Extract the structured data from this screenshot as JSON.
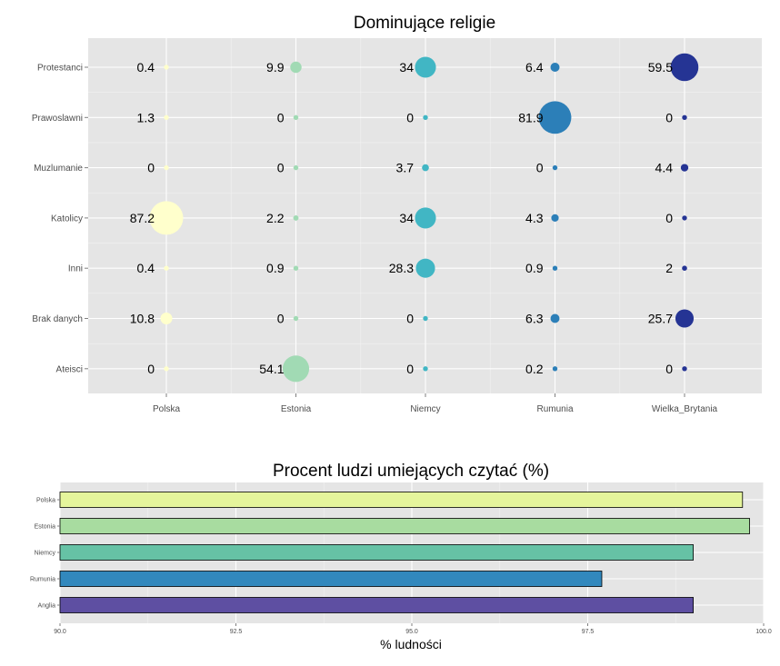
{
  "chart_data": [
    {
      "type": "scatter",
      "subtype": "bubble",
      "title": "Dominujące religie",
      "xlabel": "",
      "ylabel": "",
      "categories_x": [
        "Polska",
        "Estonia",
        "Niemcy",
        "Rumunia",
        "Wielka_Brytania"
      ],
      "categories_y": [
        "Protestanci",
        "Prawoslawni",
        "Muzlumanie",
        "Katolicy",
        "Inni",
        "Brak danych",
        "Ateisci"
      ],
      "colors": [
        "#ffffcc",
        "#a1dab4",
        "#41b6c4",
        "#2c7fb8",
        "#253494"
      ],
      "grid": true,
      "legend": "none",
      "values": {
        "Polska": [
          0.4,
          1.3,
          0,
          87.2,
          0.4,
          10.8,
          0
        ],
        "Estonia": [
          9.9,
          0,
          0,
          2.2,
          0.9,
          0,
          54.1
        ],
        "Niemcy": [
          34,
          0,
          3.7,
          34,
          28.3,
          0,
          0
        ],
        "Rumunia": [
          6.4,
          81.9,
          0,
          4.3,
          0.9,
          6.3,
          0.2
        ],
        "Wielka_Brytania": [
          59.5,
          0,
          4.4,
          0,
          2,
          25.7,
          0
        ]
      },
      "labels": {
        "Polska": [
          "0.4",
          "1.3",
          "0",
          "87.2",
          "0.4",
          "10.8",
          "0"
        ],
        "Estonia": [
          "9.9",
          "0",
          "0",
          "2.2",
          "0.9",
          "0",
          "54.1"
        ],
        "Niemcy": [
          "34",
          "0",
          "3.7",
          "34",
          "28.3",
          "0",
          "0"
        ],
        "Rumunia": [
          "6.4",
          "81.9",
          "0",
          "4.3",
          "0.9",
          "6.3",
          "0.2"
        ],
        "Wielka_Brytania": [
          "59.5",
          "0",
          "4.4",
          "0",
          "2",
          "25.7",
          "0"
        ]
      }
    },
    {
      "type": "bar",
      "orientation": "horizontal",
      "title": "Procent ludzi umiejących czytać (%)",
      "xlabel": "% ludności",
      "ylabel": "",
      "categories": [
        "Polska",
        "Estonia",
        "Niemcy",
        "Rumunia",
        "Anglia"
      ],
      "values": [
        99.7,
        99.8,
        99.0,
        97.7,
        99.0
      ],
      "colors": [
        "#e5f59c",
        "#a8dca0",
        "#66c2a5",
        "#3288bd",
        "#5e4fa2"
      ],
      "xlim": [
        90,
        100
      ],
      "xticks": [
        "90.0",
        "92.5",
        "95.0",
        "97.5",
        "100.0"
      ],
      "grid": true,
      "legend": "none"
    }
  ]
}
